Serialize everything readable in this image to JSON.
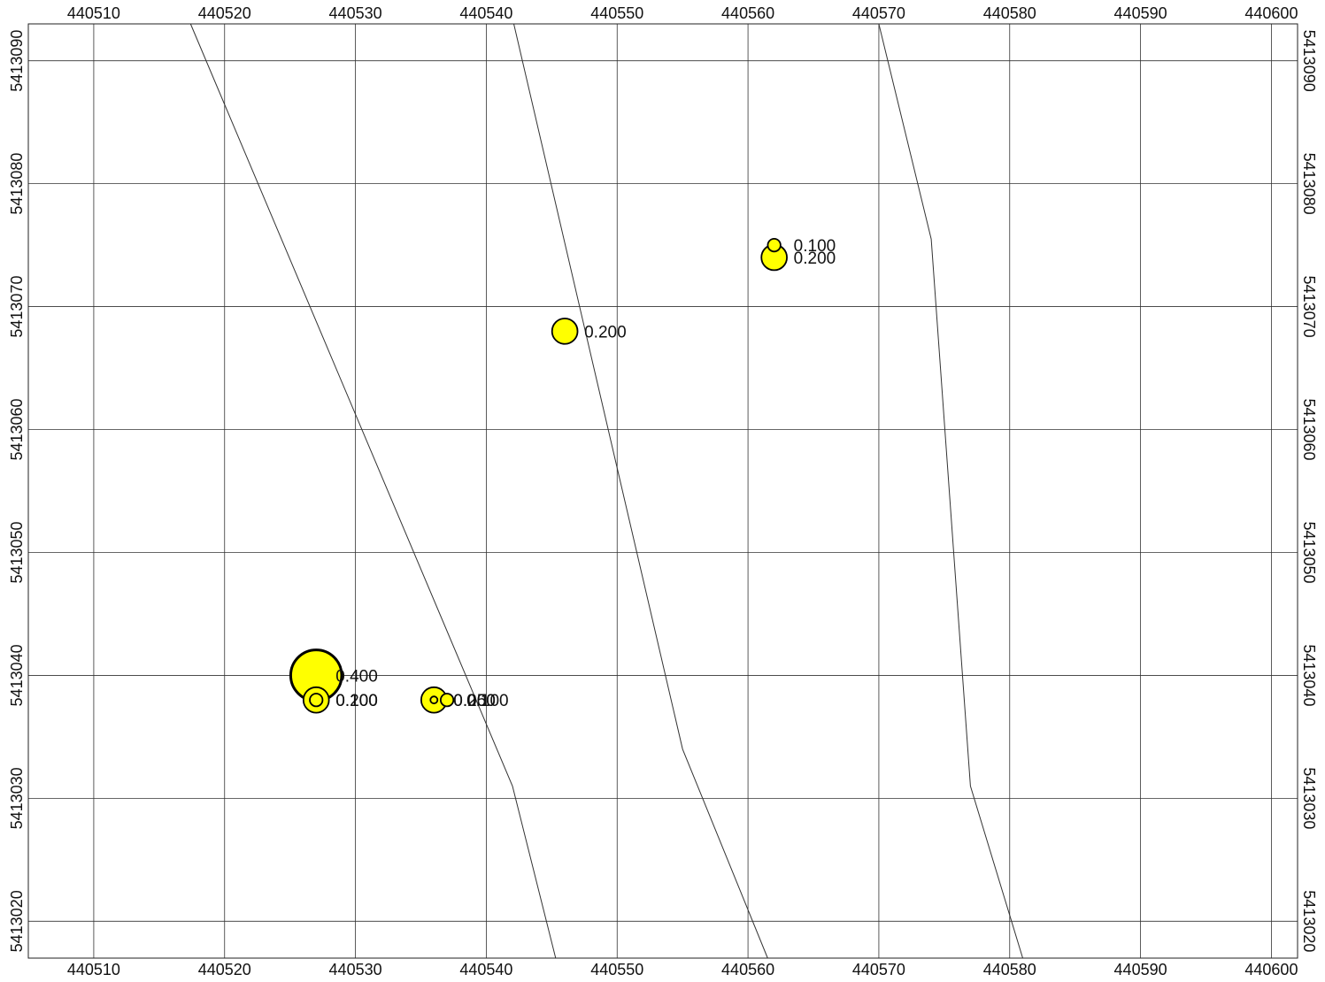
{
  "chart_data": {
    "type": "scatter",
    "title": "",
    "xlabel": "",
    "ylabel": "",
    "xlim": [
      440505,
      440602
    ],
    "ylim": [
      5413017,
      5413093
    ],
    "x_ticks": [
      440510,
      440520,
      440530,
      440540,
      440550,
      440560,
      440570,
      440580,
      440590,
      440600
    ],
    "y_ticks": [
      5413020,
      5413030,
      5413040,
      5413050,
      5413060,
      5413070,
      5413080,
      5413090
    ],
    "x_tick_labels": [
      "440510",
      "440520",
      "440530",
      "440540",
      "440550",
      "440560",
      "440570",
      "440580",
      "440590",
      "440600"
    ],
    "y_tick_labels": [
      "5413020",
      "5413030",
      "5413040",
      "5413050",
      "5413060",
      "5413070",
      "5413080",
      "5413090"
    ],
    "grid": true,
    "point_color": "#ffff00",
    "outline_color": "#000000",
    "points": [
      {
        "x": 440527,
        "y": 5413040,
        "value": 0.4,
        "label": "0.400"
      },
      {
        "x": 440527,
        "y": 5413038,
        "value": 0.2,
        "label": "0.200"
      },
      {
        "x": 440527,
        "y": 5413038,
        "value": 0.1,
        "label": "0.100"
      },
      {
        "x": 440536,
        "y": 5413038,
        "value": 0.2,
        "label": "0.200"
      },
      {
        "x": 440536,
        "y": 5413038,
        "value": 0.05,
        "label": "0.050"
      },
      {
        "x": 440537,
        "y": 5413038,
        "value": 0.1,
        "label": "0.100"
      },
      {
        "x": 440546,
        "y": 5413068,
        "value": 0.2,
        "label": "0.200"
      },
      {
        "x": 440562,
        "y": 5413075,
        "value": 0.1,
        "label": "0.100"
      },
      {
        "x": 440562,
        "y": 5413074,
        "value": 0.2,
        "label": "0.200"
      }
    ],
    "lines": [
      {
        "points": [
          [
            440517.4,
            5413093
          ],
          [
            440542,
            5413031
          ],
          [
            440545.3,
            5413017
          ]
        ]
      },
      {
        "points": [
          [
            440542.1,
            5413093
          ],
          [
            440555,
            5413034
          ],
          [
            440561.5,
            5413017
          ]
        ]
      },
      {
        "points": [
          [
            440570,
            5413093
          ],
          [
            440574,
            5413075.5
          ],
          [
            440577,
            5413031
          ],
          [
            440581,
            5413017
          ]
        ]
      }
    ]
  }
}
